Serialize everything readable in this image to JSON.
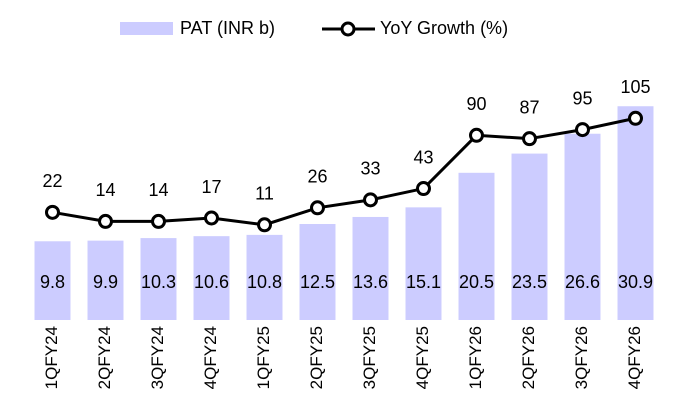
{
  "chart_data": {
    "type": "bar-line",
    "categories": [
      "1QFY24",
      "2QFY24",
      "3QFY24",
      "4QFY24",
      "1QFY25",
      "2QFY25",
      "3QFY25",
      "4QFY25",
      "1QFY26",
      "2QFY26",
      "3QFY26",
      "4QFY26"
    ],
    "series": [
      {
        "name": "PAT (INR b)",
        "type": "bar",
        "color": "#ccccff",
        "values": [
          9.8,
          9.9,
          10.3,
          10.6,
          10.8,
          12.5,
          13.6,
          15.1,
          20.5,
          23.5,
          26.6,
          30.9
        ]
      },
      {
        "name": "YoY Growth (%)",
        "type": "line",
        "color": "#000000",
        "axis": "y2",
        "values": [
          22,
          14,
          14,
          17,
          11,
          26,
          33,
          43,
          90,
          87,
          95,
          105
        ]
      }
    ],
    "ylim": [
      -2.5,
      40
    ],
    "y2lim": [
      -73,
      167
    ],
    "legend": "top"
  }
}
